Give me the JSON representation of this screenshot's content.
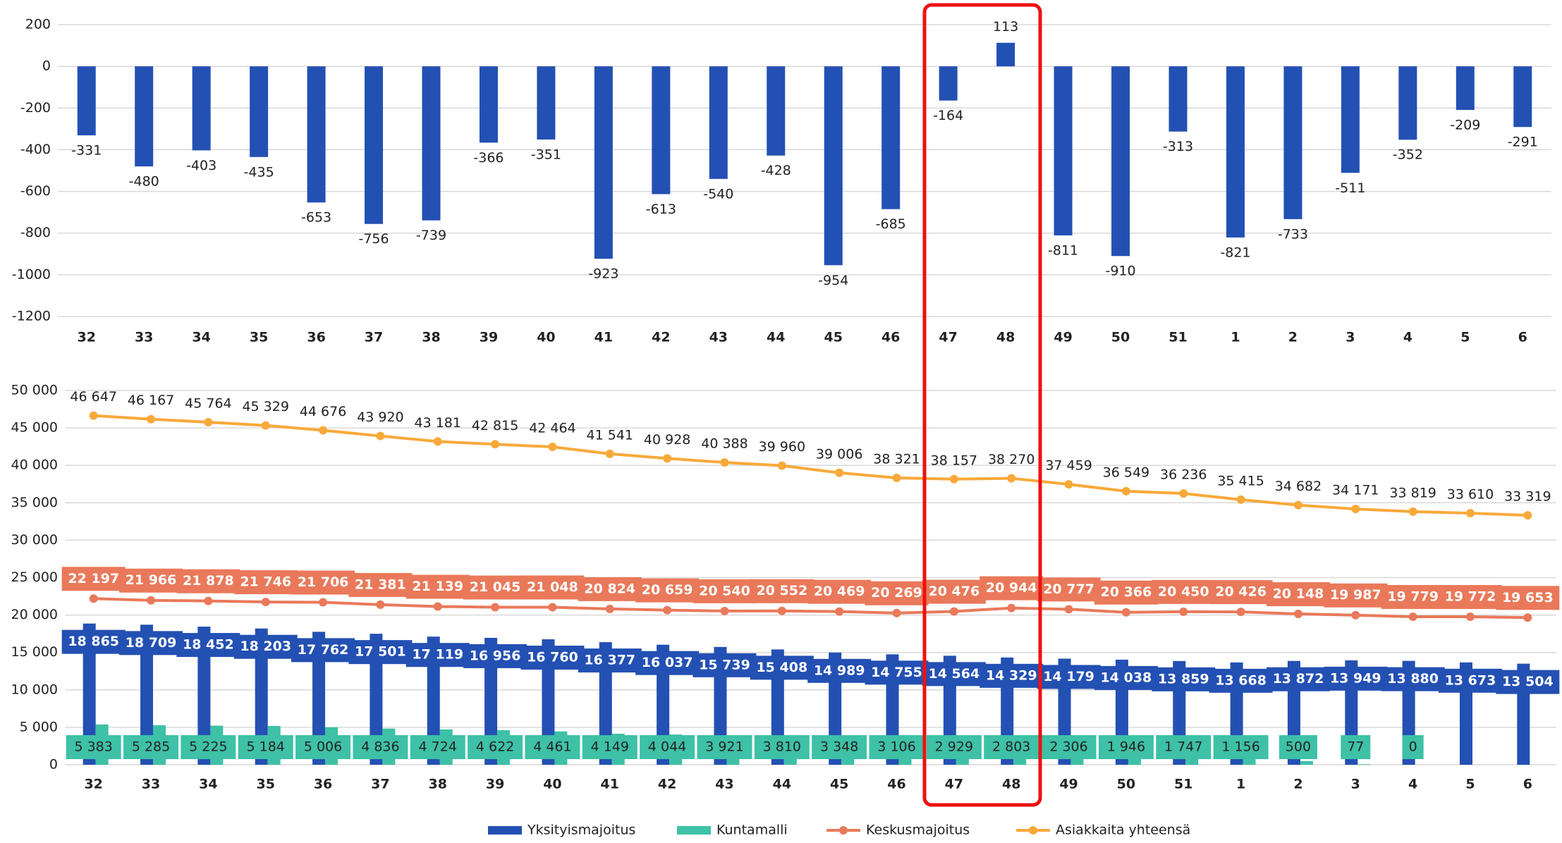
{
  "chart_data": [
    {
      "type": "bar",
      "categories": [
        "32",
        "33",
        "34",
        "35",
        "36",
        "37",
        "38",
        "39",
        "40",
        "41",
        "42",
        "43",
        "44",
        "45",
        "46",
        "47",
        "48",
        "49",
        "50",
        "51",
        "1",
        "2",
        "3",
        "4",
        "5",
        "6"
      ],
      "values": [
        -331,
        -480,
        -403,
        -435,
        -653,
        -756,
        -739,
        -366,
        -351,
        -923,
        -613,
        -540,
        -428,
        -954,
        -685,
        -164,
        113,
        -811,
        -910,
        -313,
        -821,
        -733,
        -511,
        -352,
        -209,
        -291
      ],
      "color": "#2350b3",
      "ylim": [
        -1200,
        200
      ],
      "yticks": [
        -1200,
        -1000,
        -800,
        -600,
        -400,
        -200,
        0,
        200
      ],
      "grid": true
    },
    {
      "type": "combo",
      "categories": [
        "32",
        "33",
        "34",
        "35",
        "36",
        "37",
        "38",
        "39",
        "40",
        "41",
        "42",
        "43",
        "44",
        "45",
        "46",
        "47",
        "48",
        "49",
        "50",
        "51",
        "1",
        "2",
        "3",
        "4",
        "5",
        "6"
      ],
      "series": [
        {
          "name": "Yksityismajoitus",
          "kind": "bar",
          "color": "#2350b3",
          "values": [
            18865,
            18709,
            18452,
            18203,
            17762,
            17501,
            17119,
            16956,
            16760,
            16377,
            16037,
            15739,
            15408,
            14989,
            14755,
            14564,
            14329,
            14179,
            14038,
            13859,
            13668,
            13872,
            13949,
            13880,
            13673,
            13504
          ],
          "value_labels": [
            "18 865",
            "18 709",
            "18 452",
            "18 203",
            "17 762",
            "17 501",
            "17 119",
            "16 956",
            "16 760",
            "16 377",
            "16 037",
            "15 739",
            "15 408",
            "14 989",
            "14 755",
            "14 564",
            "14 329",
            "14 179",
            "14 038",
            "13 859",
            "13 668",
            "13 872",
            "13 949",
            "13 880",
            "13 673",
            "13 504"
          ]
        },
        {
          "name": "Kuntamalli",
          "kind": "bar",
          "color": "#3ec1a6",
          "values": [
            5383,
            5285,
            5225,
            5184,
            5006,
            4836,
            4724,
            4622,
            4461,
            4149,
            4044,
            3921,
            3810,
            3348,
            3106,
            2929,
            2803,
            2306,
            1946,
            1747,
            1156,
            500,
            77,
            0,
            null,
            null
          ],
          "value_labels": [
            "5 383",
            "5 285",
            "5 225",
            "5 184",
            "5 006",
            "4 836",
            "4 724",
            "4 622",
            "4 461",
            "4 149",
            "4 044",
            "3 921",
            "3 810",
            "3 348",
            "3 106",
            "2 929",
            "2 803",
            "2 306",
            "1 946",
            "1 747",
            "1 156",
            "500",
            "77",
            "0",
            null,
            null
          ]
        },
        {
          "name": "Keskusmajoitus",
          "kind": "line",
          "color": "#e9795a",
          "values": [
            22197,
            21966,
            21878,
            21746,
            21706,
            21381,
            21139,
            21045,
            21048,
            20824,
            20659,
            20540,
            20552,
            20469,
            20269,
            20476,
            20944,
            20777,
            20366,
            20450,
            20426,
            20148,
            19987,
            19779,
            19772,
            19653
          ],
          "value_labels": [
            "22 197",
            "21 966",
            "21 878",
            "21 746",
            "21 706",
            "21 381",
            "21 139",
            "21 045",
            "21 048",
            "20 824",
            "20 659",
            "20 540",
            "20 552",
            "20 469",
            "20 269",
            "20 476",
            "20 944",
            "20 777",
            "20 366",
            "20 450",
            "20 426",
            "20 148",
            "19 987",
            "19 779",
            "19 772",
            "19 653"
          ]
        },
        {
          "name": "Asiakkaita yhteensä",
          "kind": "line",
          "color": "#f8a93a",
          "values": [
            46647,
            46167,
            45764,
            45329,
            44676,
            43920,
            43181,
            42815,
            42464,
            41541,
            40928,
            40388,
            39960,
            39006,
            38321,
            38157,
            38270,
            37459,
            36549,
            36236,
            35415,
            34682,
            34171,
            33819,
            33610,
            33319
          ],
          "value_labels": [
            "46 647",
            "46 167",
            "45 764",
            "45 329",
            "44 676",
            "43 920",
            "43 181",
            "42 815",
            "42 464",
            "41 541",
            "40 928",
            "40 388",
            "39 960",
            "39 006",
            "38 321",
            "38 157",
            "38 270",
            "37 459",
            "36 549",
            "36 236",
            "35 415",
            "34 682",
            "34 171",
            "33 819",
            "33 610",
            "33 319"
          ]
        }
      ],
      "ylim": [
        0,
        50000
      ],
      "yticks": [
        0,
        {
          "value": 5000,
          "label": "5 000"
        },
        {
          "value": 10000,
          "label": "10 000"
        },
        {
          "value": 15000,
          "label": "15 000"
        },
        {
          "value": 20000,
          "label": "20 000"
        },
        {
          "value": 25000,
          "label": "25 000"
        },
        {
          "value": 30000,
          "label": "30 000"
        },
        {
          "value": 35000,
          "label": "35 000"
        },
        {
          "value": 40000,
          "label": "40 000"
        },
        {
          "value": 45000,
          "label": "45 000"
        },
        {
          "value": 50000,
          "label": "50 000"
        }
      ],
      "grid": true,
      "legend": "bottom"
    }
  ]
}
